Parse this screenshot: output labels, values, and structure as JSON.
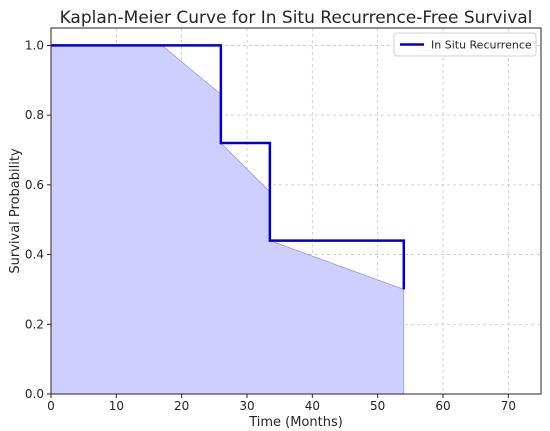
{
  "chart_data": {
    "type": "line",
    "title": "Kaplan-Meier Curve for In Situ Recurrence-Free Survival",
    "xlabel": "Time (Months)",
    "ylabel": "Survival Probability",
    "xlim": [
      0,
      75
    ],
    "ylim": [
      0,
      1.05
    ],
    "xticks": [
      0,
      10,
      20,
      30,
      40,
      50,
      60,
      70
    ],
    "yticks": [
      0.0,
      0.2,
      0.4,
      0.6,
      0.8,
      1.0
    ],
    "ytick_labels": [
      "0.0",
      "0.2",
      "0.4",
      "0.6",
      "0.8",
      "1.0"
    ],
    "grid": true,
    "legend_position": "top-right",
    "series": [
      {
        "name": "In Situ Recurrence",
        "color": "#0000cc",
        "step_points": [
          {
            "x": 0,
            "y": 1.0
          },
          {
            "x": 26,
            "y": 1.0
          },
          {
            "x": 26,
            "y": 0.72
          },
          {
            "x": 33.5,
            "y": 0.72
          },
          {
            "x": 33.5,
            "y": 0.44
          },
          {
            "x": 54,
            "y": 0.44
          },
          {
            "x": 54,
            "y": 0.3
          }
        ],
        "band_color": "#ccccff",
        "band_lower": [
          {
            "x": 0,
            "y": 0
          },
          {
            "x": 54,
            "y": 0
          }
        ],
        "band_upper": [
          {
            "x": 0,
            "y": 1.0
          },
          {
            "x": 17,
            "y": 1.0
          },
          {
            "x": 26,
            "y": 0.86
          },
          {
            "x": 26,
            "y": 0.72
          },
          {
            "x": 33.5,
            "y": 0.58
          },
          {
            "x": 33.5,
            "y": 0.44
          },
          {
            "x": 54,
            "y": 0.3
          }
        ]
      }
    ]
  }
}
